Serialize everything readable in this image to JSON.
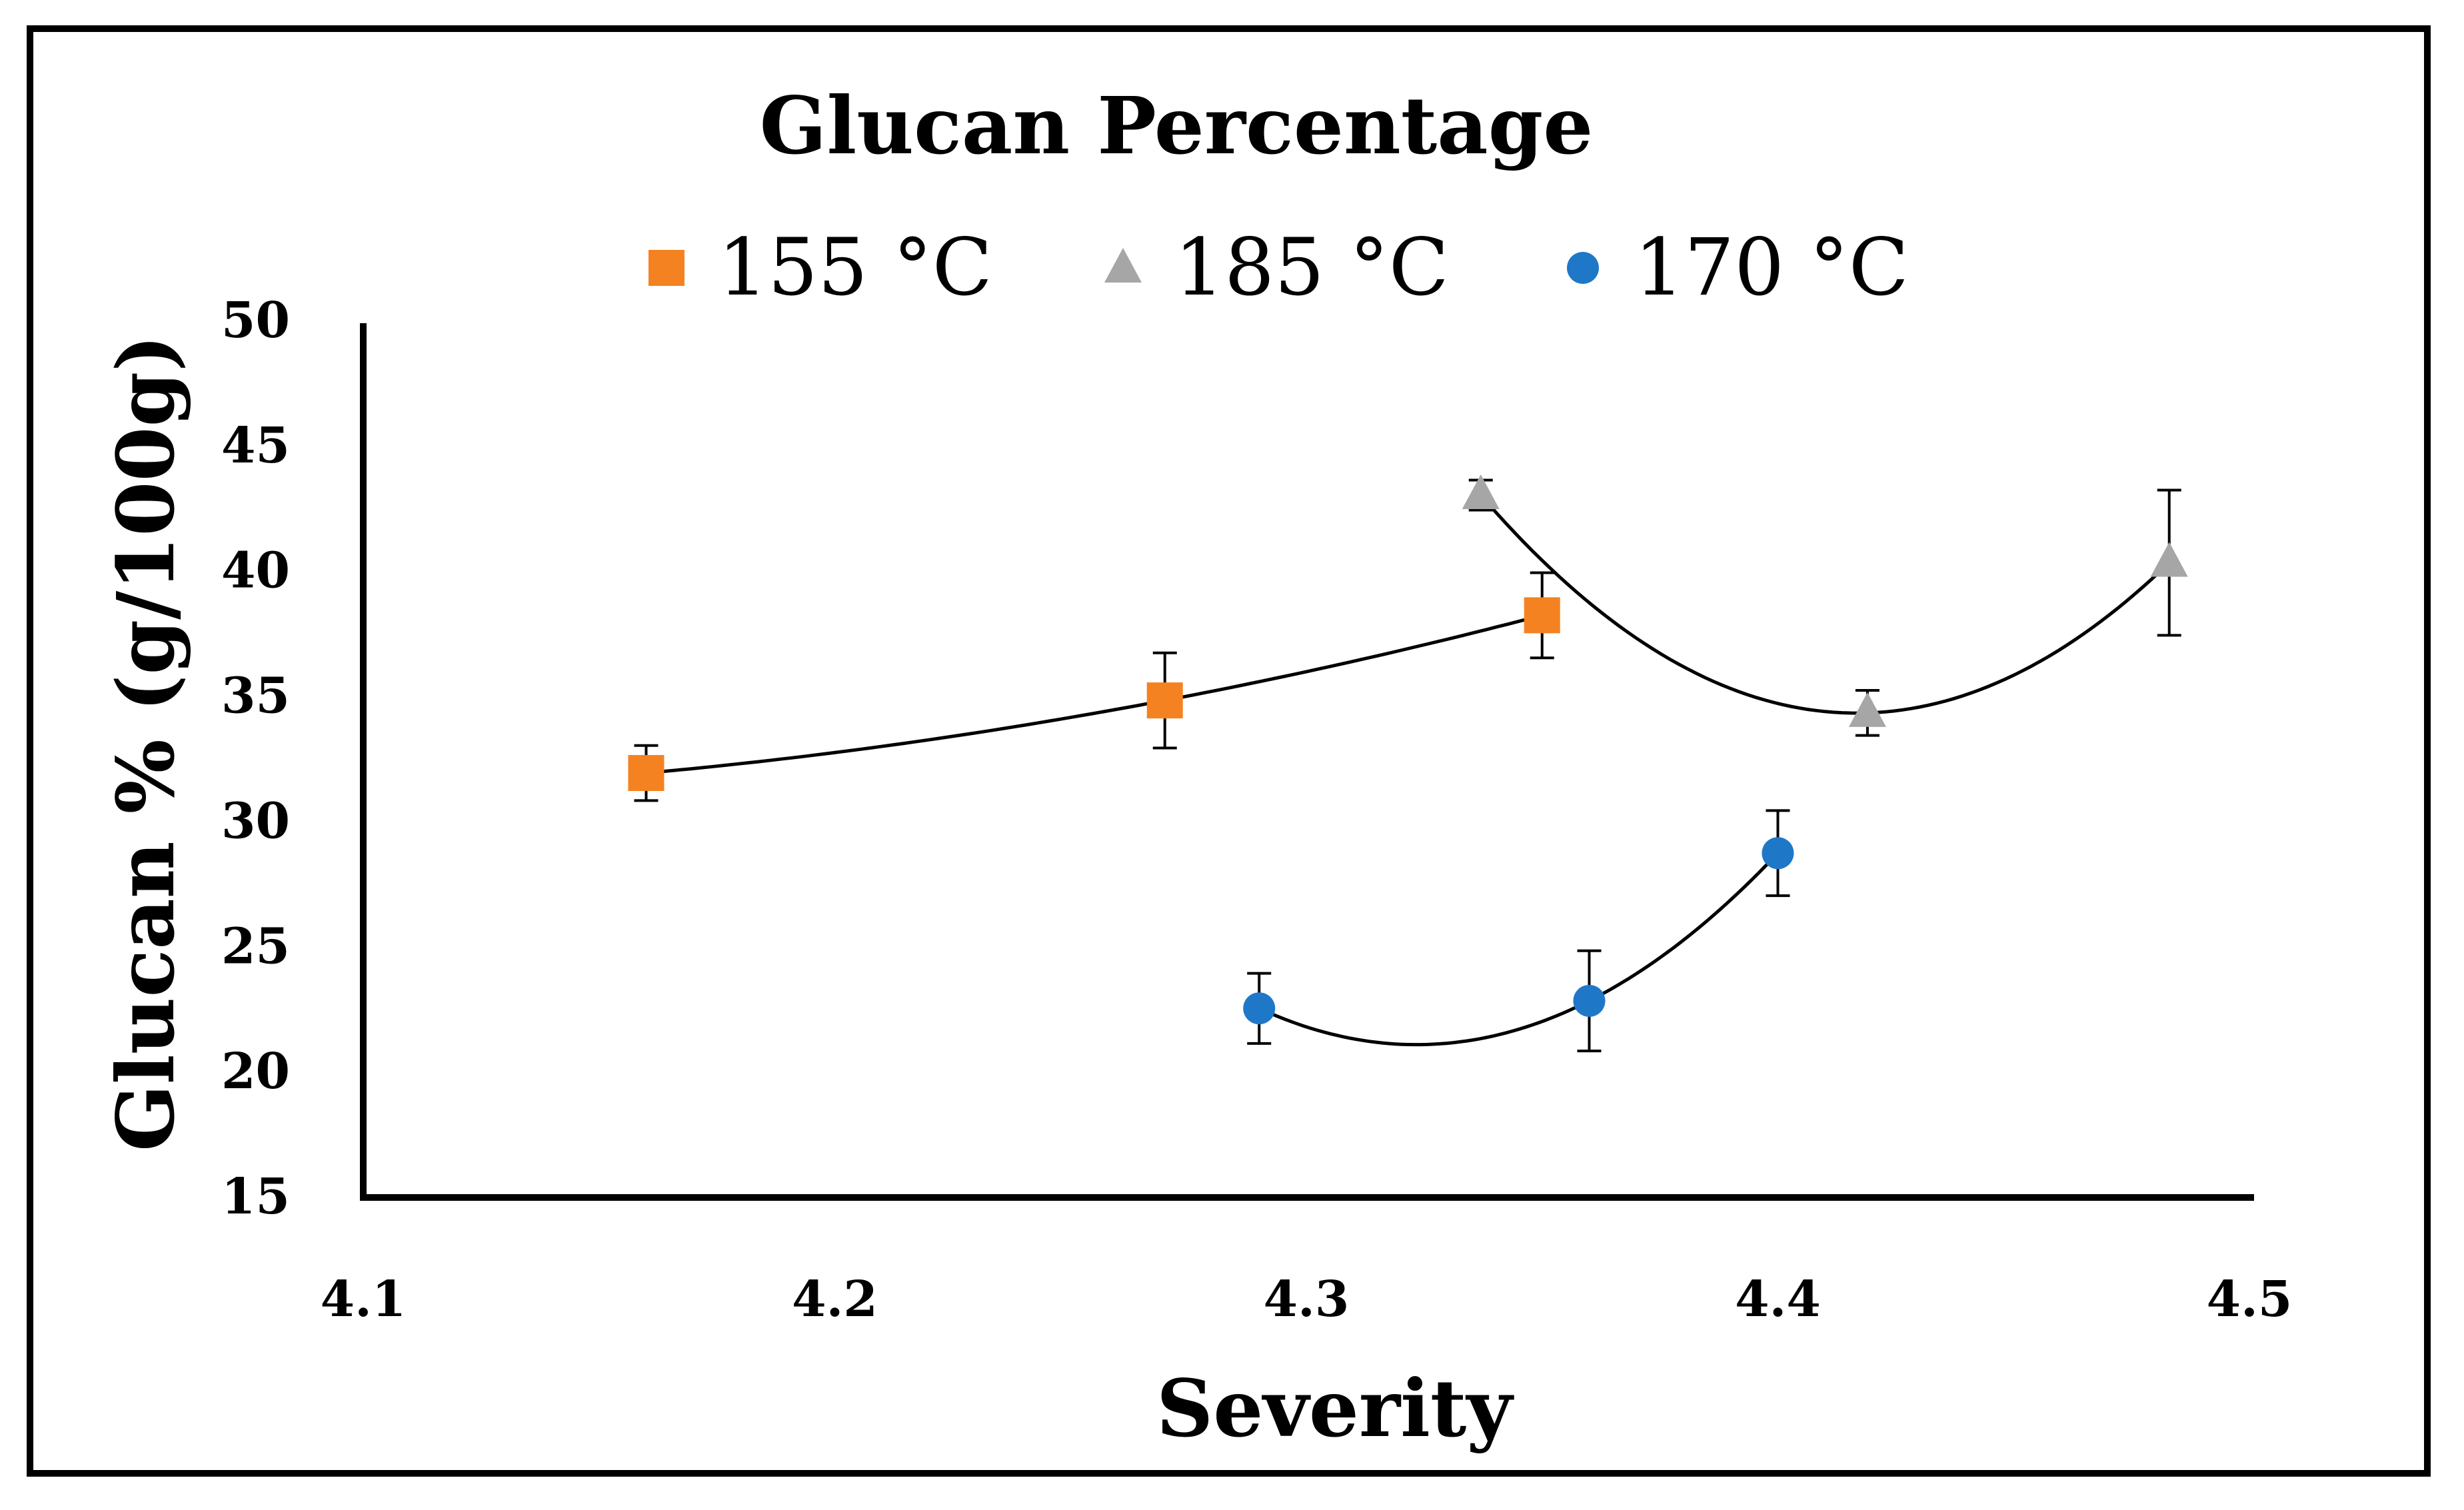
{
  "chart_data": {
    "type": "scatter",
    "title": "Glucan Percentage",
    "xlabel": "Severity",
    "ylabel": "Glucan % (g/100g)",
    "xlim": [
      4.1,
      4.5
    ],
    "ylim": [
      15,
      50
    ],
    "x_ticks": [
      "4.1",
      "4.2",
      "4.3",
      "4.4",
      "4.5"
    ],
    "y_ticks": [
      "15",
      "20",
      "25",
      "30",
      "35",
      "40",
      "45",
      "50"
    ],
    "grid": false,
    "legend_position": "top",
    "trendline": "polynomial order 2",
    "series": [
      {
        "name": "155 °C",
        "marker": "square",
        "color": "#F58220",
        "x": [
          4.16,
          4.27,
          4.35
        ],
        "y": [
          31.9,
          34.8,
          38.2
        ],
        "error": [
          1.1,
          1.9,
          1.7
        ]
      },
      {
        "name": "185 °C",
        "marker": "triangle",
        "color": "#A6A6A6",
        "x": [
          4.337,
          4.419,
          4.483
        ],
        "y": [
          43.0,
          34.3,
          40.3
        ],
        "error": [
          0.6,
          0.9,
          2.9
        ]
      },
      {
        "name": "170 °C",
        "marker": "circle",
        "color": "#1F77C8",
        "x": [
          4.29,
          4.36,
          4.4
        ],
        "y": [
          22.5,
          22.8,
          28.7
        ],
        "error": [
          1.4,
          2.0,
          1.7
        ]
      }
    ]
  }
}
